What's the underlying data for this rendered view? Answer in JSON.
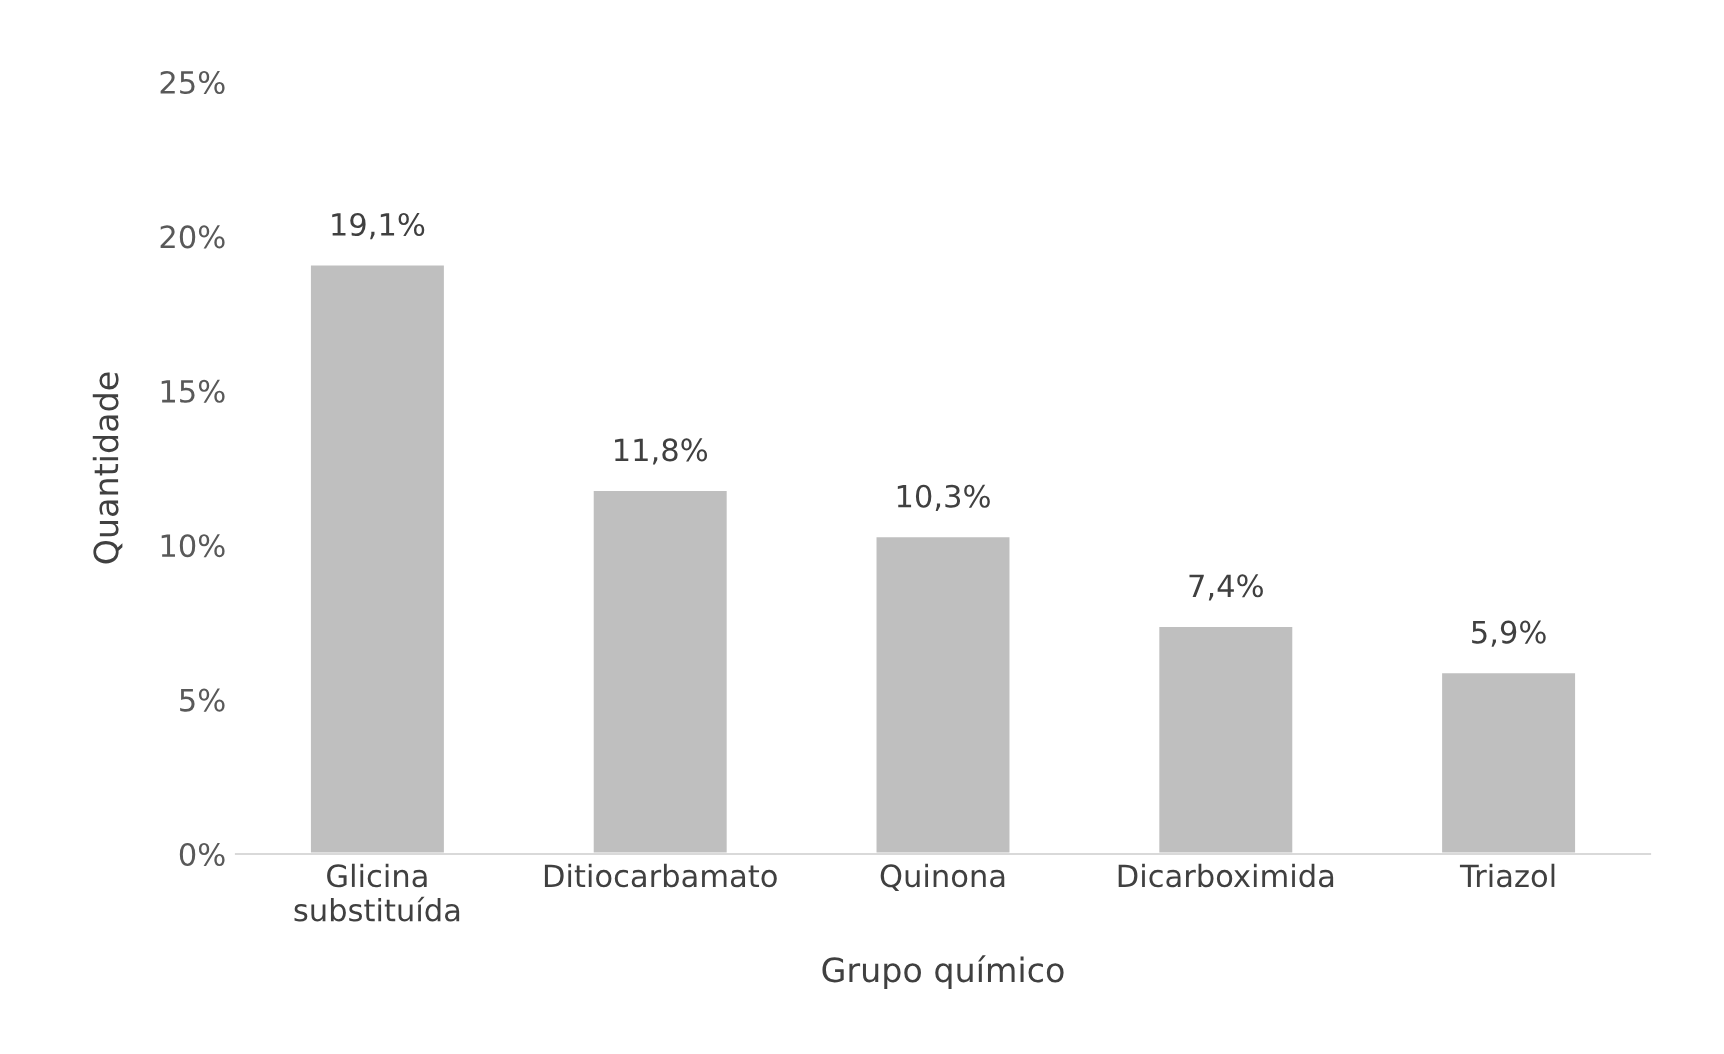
{
  "chart_data": {
    "type": "bar",
    "xlabel": "Grupo químico",
    "ylabel": "Quantidade",
    "categories": [
      "Glicina\nsubstituída",
      "Ditiocarbamato",
      "Quinona",
      "Dicarboximida",
      "Triazol"
    ],
    "values": [
      19.1,
      11.8,
      10.3,
      7.4,
      5.9
    ],
    "value_labels": [
      "19,1%",
      "11,8%",
      "10,3%",
      "7,4%",
      "5,9%"
    ],
    "color": "#bfbfbf",
    "ylim": [
      0,
      25
    ],
    "yticks": [
      {
        "value": 0,
        "label": "0%"
      },
      {
        "value": 5,
        "label": "5%"
      },
      {
        "value": 10,
        "label": "10%"
      },
      {
        "value": 15,
        "label": "15%"
      },
      {
        "value": 20,
        "label": "20%"
      },
      {
        "value": 25,
        "label": "25%"
      }
    ],
    "grid": false
  }
}
